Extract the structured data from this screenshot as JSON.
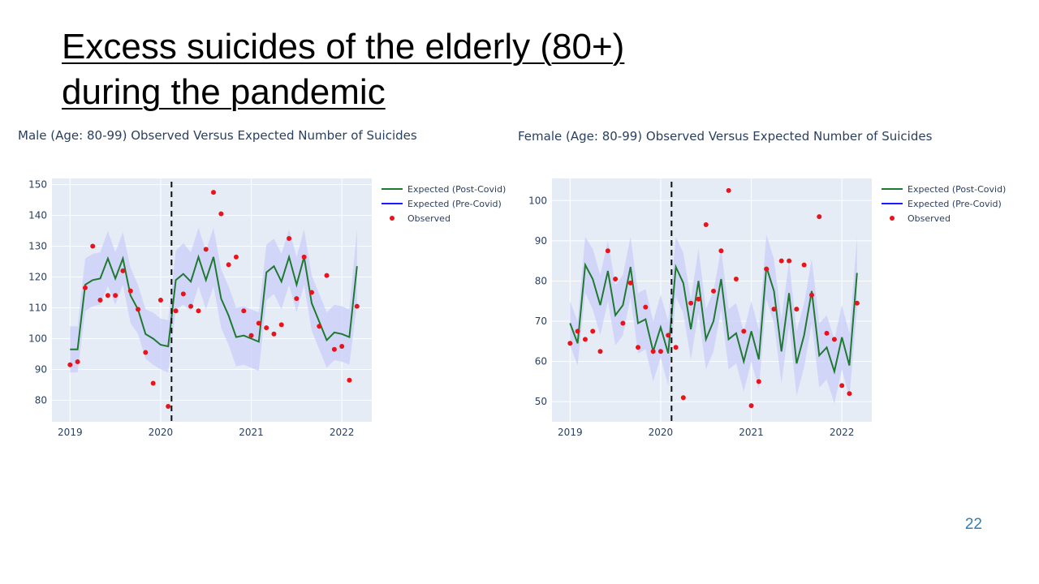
{
  "slide": {
    "title_line1": "Excess suicides of the elderly (80+)",
    "title_line2": "during the pandemic",
    "page_number": "22"
  },
  "colors": {
    "plot_bg": "#e5ecf6",
    "band": "#c9cffa",
    "expected_post": "#1f7a2f",
    "expected_pre": "#1a1aff",
    "observed": "#e8141a",
    "axis_text": "#2a3f5f"
  },
  "chart_data": [
    {
      "type": "line",
      "title": "Male (Age: 80-99) Observed Versus Expected Number of Suicides",
      "xlabel": "",
      "ylabel": "",
      "x_ticks": [
        "2019",
        "2020",
        "2021",
        "2022"
      ],
      "y_ticks": [
        80,
        90,
        100,
        110,
        120,
        130,
        140,
        150
      ],
      "xlim": [
        2018.8,
        2022.33
      ],
      "ylim": [
        73,
        152
      ],
      "pandemic_line_x": 2020.12,
      "legend": [
        "Expected (Post-Covid)",
        "Expected (Pre-Covid)",
        "Observed"
      ],
      "legend_position": "right",
      "expected": {
        "x": [
          2019.0,
          2019.083,
          2019.167,
          2019.25,
          2019.333,
          2019.417,
          2019.5,
          2019.583,
          2019.667,
          2019.75,
          2019.833,
          2019.917,
          2020.0,
          2020.083,
          2020.167,
          2020.25,
          2020.333,
          2020.417,
          2020.5,
          2020.583,
          2020.667,
          2020.75,
          2020.833,
          2020.917,
          2021.0,
          2021.083,
          2021.167,
          2021.25,
          2021.333,
          2021.417,
          2021.5,
          2021.583,
          2021.667,
          2021.75,
          2021.833,
          2021.917,
          2022.0,
          2022.083,
          2022.167
        ],
        "y": [
          96.5,
          96.5,
          117.5,
          119,
          119.5,
          126,
          119.5,
          126,
          114,
          109.5,
          101.5,
          100,
          98,
          97.5,
          119,
          121,
          118.5,
          126.5,
          119,
          126.5,
          113,
          107.5,
          100.5,
          101,
          100,
          99,
          121.5,
          123.5,
          118.5,
          126.5,
          117.5,
          126.5,
          111.5,
          105.5,
          99.5,
          102,
          101.5,
          100.5,
          123.5
        ],
        "upper": [
          104,
          104,
          126,
          127.5,
          128,
          135,
          128,
          134.5,
          123,
          117.5,
          109.5,
          108.5,
          106.5,
          106,
          128.5,
          131,
          128,
          136,
          128.5,
          136,
          122.5,
          117,
          110,
          110.5,
          109.5,
          108.5,
          130.5,
          132.5,
          127.5,
          135.5,
          126.5,
          135.5,
          120.5,
          114.5,
          108.5,
          111,
          110.5,
          109.5,
          135.5
        ],
        "lower": [
          89,
          89,
          109,
          110.5,
          111,
          117,
          111,
          117.5,
          105,
          101.5,
          93.5,
          91.5,
          90,
          89,
          109.5,
          111,
          109,
          117,
          109.5,
          117,
          103.5,
          98,
          91,
          91.5,
          90.5,
          89.5,
          112.5,
          114.5,
          109.5,
          117.5,
          108.5,
          117.5,
          102.5,
          96.5,
          90.5,
          93,
          92.5,
          91.5,
          111.5
        ]
      },
      "observed": {
        "x": [
          2019.0,
          2019.083,
          2019.167,
          2019.25,
          2019.333,
          2019.417,
          2019.5,
          2019.583,
          2019.667,
          2019.75,
          2019.833,
          2019.917,
          2020.0,
          2020.083,
          2020.167,
          2020.25,
          2020.333,
          2020.417,
          2020.5,
          2020.583,
          2020.667,
          2020.75,
          2020.833,
          2020.917,
          2021.0,
          2021.083,
          2021.167,
          2021.25,
          2021.333,
          2021.417,
          2021.5,
          2021.583,
          2021.667,
          2021.75,
          2021.833,
          2021.917,
          2022.0,
          2022.083,
          2022.167
        ],
        "y": [
          91.5,
          92.5,
          116.5,
          130,
          112.5,
          114,
          114,
          122,
          115.5,
          109.5,
          95.5,
          85.5,
          112.5,
          78,
          109,
          114.5,
          110.5,
          109,
          129,
          147.5,
          140.5,
          124,
          126.5,
          109,
          101,
          105,
          103.5,
          101.5,
          104.5,
          132.5,
          113,
          126.5,
          115,
          104,
          120.5,
          96.5,
          97.5,
          86.5,
          110.5
        ]
      }
    },
    {
      "type": "line",
      "title": "Female (Age: 80-99) Observed Versus Expected Number of Suicides",
      "xlabel": "",
      "ylabel": "",
      "x_ticks": [
        "2019",
        "2020",
        "2021",
        "2022"
      ],
      "y_ticks": [
        50,
        60,
        70,
        80,
        90,
        100
      ],
      "xlim": [
        2018.8,
        2022.33
      ],
      "ylim": [
        45,
        105.5
      ],
      "pandemic_line_x": 2020.12,
      "legend": [
        "Expected (Post-Covid)",
        "Expected (Pre-Covid)",
        "Observed"
      ],
      "legend_position": "right",
      "expected": {
        "x": [
          2019.0,
          2019.083,
          2019.167,
          2019.25,
          2019.333,
          2019.417,
          2019.5,
          2019.583,
          2019.667,
          2019.75,
          2019.833,
          2019.917,
          2020.0,
          2020.083,
          2020.167,
          2020.25,
          2020.333,
          2020.417,
          2020.5,
          2020.583,
          2020.667,
          2020.75,
          2020.833,
          2020.917,
          2021.0,
          2021.083,
          2021.167,
          2021.25,
          2021.333,
          2021.417,
          2021.5,
          2021.583,
          2021.667,
          2021.75,
          2021.833,
          2021.917,
          2022.0,
          2022.083,
          2022.167
        ],
        "y": [
          69.5,
          64.5,
          84,
          80.5,
          74,
          82.5,
          71.5,
          74,
          83.5,
          69.5,
          70.5,
          62.5,
          68.5,
          62,
          83.5,
          79.5,
          68,
          80,
          65.5,
          70,
          80.5,
          65.5,
          67,
          60,
          67.5,
          60.5,
          83.5,
          77.5,
          62.5,
          77,
          59.5,
          66.5,
          77.5,
          61.5,
          63.5,
          57.5,
          66,
          59,
          82
        ],
        "upper": [
          75,
          70,
          91,
          88,
          81.5,
          90,
          79,
          81.5,
          91,
          77,
          78,
          70,
          76.5,
          70,
          91,
          87,
          75.5,
          88,
          73,
          77.5,
          88,
          73,
          74.5,
          67.5,
          75,
          68,
          91.5,
          85.5,
          70.5,
          85,
          67.5,
          74.5,
          85.5,
          69.5,
          71.5,
          65.5,
          74,
          67,
          91
        ],
        "lower": [
          64,
          59,
          77,
          73,
          66.5,
          75,
          64,
          66.5,
          76,
          62,
          63,
          55,
          61,
          54,
          76,
          72,
          60.5,
          72,
          58,
          62.5,
          73,
          58,
          59.5,
          52.5,
          60,
          53,
          75.5,
          69.5,
          54.5,
          69,
          51.5,
          58.5,
          69.5,
          53.5,
          55.5,
          49.5,
          58,
          51,
          73
        ]
      },
      "observed": {
        "x": [
          2019.0,
          2019.083,
          2019.167,
          2019.25,
          2019.333,
          2019.417,
          2019.5,
          2019.583,
          2019.667,
          2019.75,
          2019.833,
          2019.917,
          2020.0,
          2020.083,
          2020.167,
          2020.25,
          2020.333,
          2020.417,
          2020.5,
          2020.583,
          2020.667,
          2020.75,
          2020.833,
          2020.917,
          2021.0,
          2021.083,
          2021.167,
          2021.25,
          2021.333,
          2021.417,
          2021.5,
          2021.583,
          2021.667,
          2021.75,
          2021.833,
          2021.917,
          2022.0,
          2022.083,
          2022.167
        ],
        "y": [
          64.5,
          67.5,
          65.5,
          67.5,
          62.5,
          87.5,
          80.5,
          69.5,
          79.5,
          63.5,
          73.5,
          62.5,
          62.5,
          66.5,
          63.5,
          51,
          74.5,
          75.5,
          94,
          77.5,
          87.5,
          102.5,
          80.5,
          67.5,
          49,
          55,
          83,
          73,
          85,
          85,
          73,
          84,
          76.5,
          96,
          67,
          65.5,
          54,
          52,
          74.5
        ]
      }
    }
  ]
}
